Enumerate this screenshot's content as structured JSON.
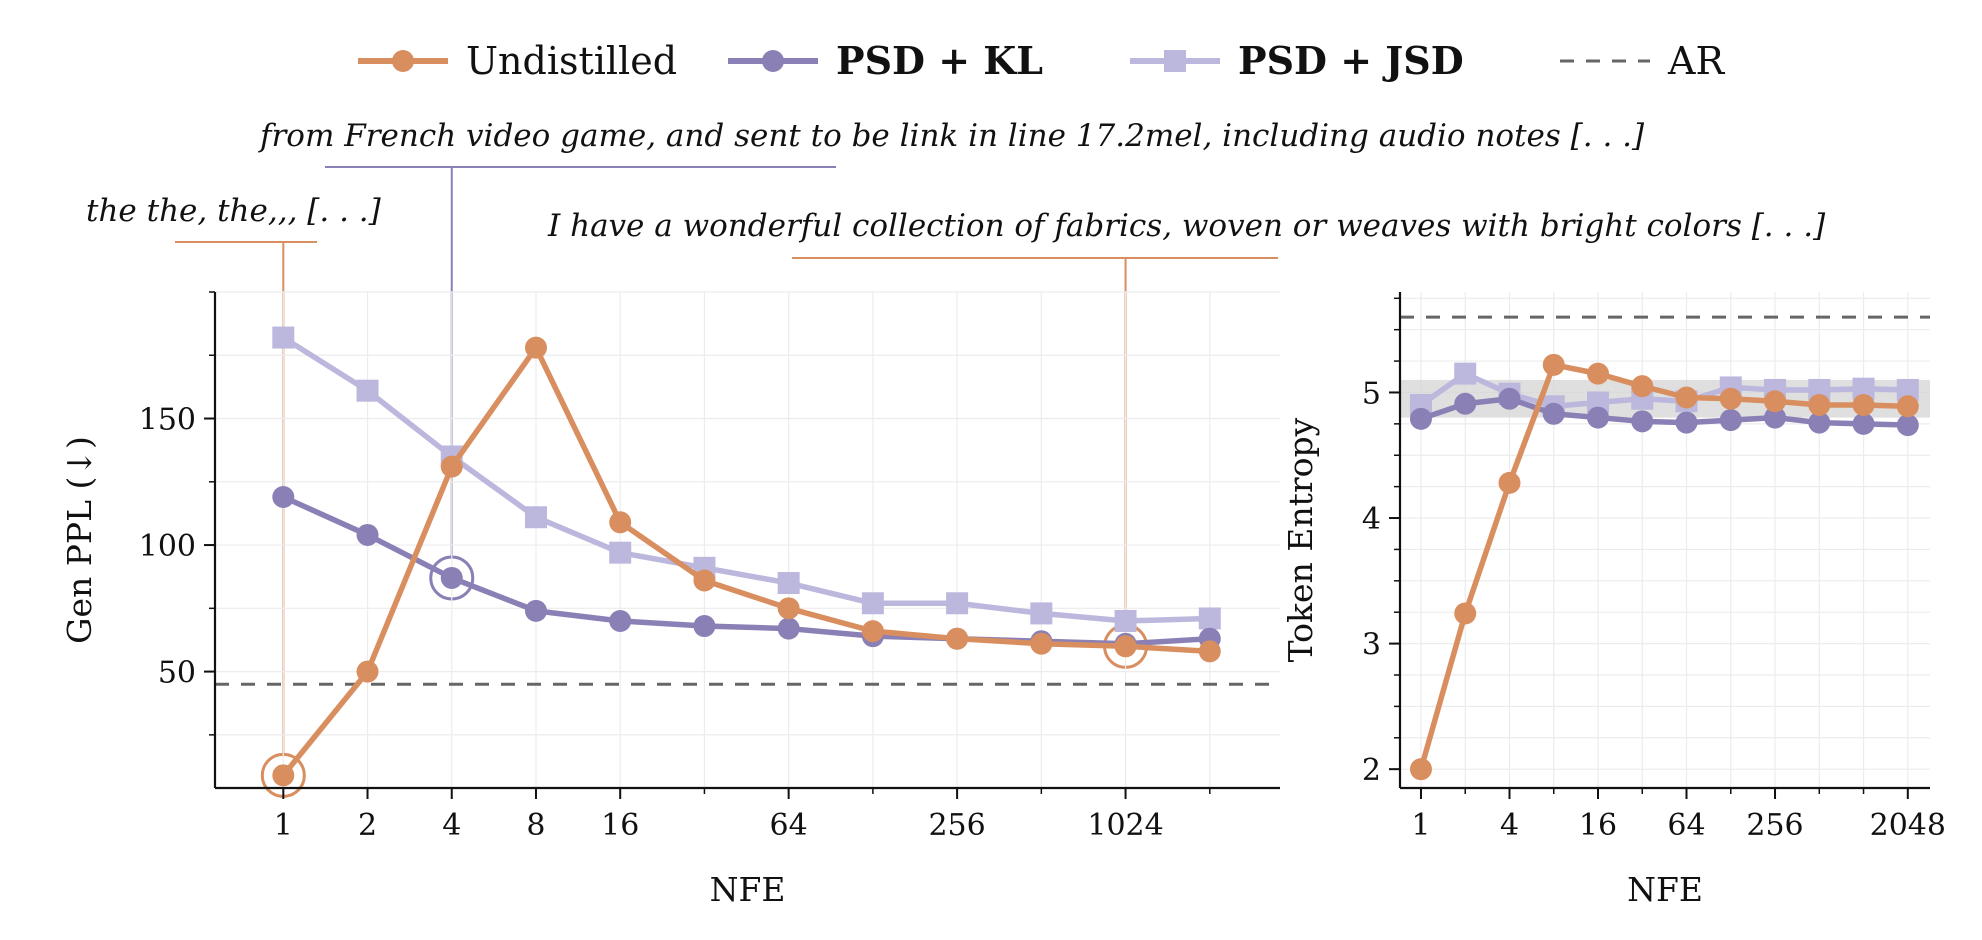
{
  "legend": [
    {
      "label": "Undistilled",
      "color": "#D98E5F",
      "marker": "circle",
      "style": "solid",
      "bold": false
    },
    {
      "label": "PSD + KL",
      "color": "#8A80B6",
      "marker": "circle",
      "style": "solid",
      "bold": true
    },
    {
      "label": "PSD + JSD",
      "color": "#BCB7DD",
      "marker": "square",
      "style": "solid",
      "bold": true
    },
    {
      "label": "AR",
      "color": "#666666",
      "marker": "none",
      "style": "dashed",
      "bold": false
    }
  ],
  "chart_data": [
    {
      "type": "line",
      "xlabel": "NFE",
      "ylabel": "Gen PPL (↓)",
      "x_scale": "log2",
      "x_ticks": [
        "1",
        "2",
        "4",
        "8",
        "16",
        "64",
        "256",
        "1024"
      ],
      "y_ticks": [
        "50",
        "100",
        "150"
      ],
      "xlim": [
        0.57,
        3650
      ],
      "ylim": [
        4,
        200
      ],
      "grid": true,
      "x": [
        1,
        2,
        4,
        8,
        16,
        32,
        64,
        128,
        256,
        512,
        1024,
        2048
      ],
      "series": [
        {
          "name": "Undistilled",
          "values": [
            9,
            50,
            131,
            178,
            109,
            86,
            75,
            66,
            63,
            61,
            60,
            58
          ]
        },
        {
          "name": "PSD + KL",
          "values": [
            119,
            104,
            87,
            74,
            70,
            68,
            67,
            64,
            63,
            62,
            61,
            63
          ]
        },
        {
          "name": "PSD + JSD",
          "values": [
            182,
            161,
            135,
            111,
            97,
            91,
            85,
            77,
            77,
            73,
            70,
            71
          ]
        }
      ],
      "reference_line": {
        "name": "AR",
        "value": 45
      },
      "annotations": [
        {
          "text": "the the, the,,, [. . .]",
          "series": "Undistilled",
          "x": 1,
          "y": 9,
          "color": "#D98E5F"
        },
        {
          "text": "from French video game, and sent to be link in line 17.2mel, including audio notes [. . .]",
          "series": "PSD + KL",
          "x": 4,
          "y": 87,
          "color": "#8A80B6"
        },
        {
          "text": "I have a wonderful collection of fabrics, woven or weaves with bright colors [. . .]",
          "series": "Undistilled",
          "x": 1024,
          "y": 60,
          "color": "#D98E5F"
        }
      ]
    },
    {
      "type": "line",
      "xlabel": "NFE",
      "ylabel": "Token Entropy",
      "x_scale": "log2",
      "x_ticks": [
        "1",
        "4",
        "16",
        "64",
        "256",
        "2048"
      ],
      "y_ticks": [
        "2",
        "3",
        "4",
        "5"
      ],
      "xlim": [
        0.72,
        2900
      ],
      "ylim": [
        1.85,
        5.8
      ],
      "grid": true,
      "x": [
        1,
        2,
        4,
        8,
        16,
        32,
        64,
        128,
        256,
        512,
        1024,
        2048
      ],
      "series": [
        {
          "name": "Undistilled",
          "values": [
            2.0,
            3.24,
            4.28,
            5.22,
            5.15,
            5.05,
            4.96,
            4.95,
            4.93,
            4.9,
            4.9,
            4.89
          ]
        },
        {
          "name": "PSD + KL",
          "values": [
            4.79,
            4.91,
            4.95,
            4.83,
            4.8,
            4.77,
            4.76,
            4.78,
            4.8,
            4.76,
            4.75,
            4.74
          ]
        },
        {
          "name": "PSD + JSD",
          "values": [
            4.9,
            5.15,
            4.99,
            4.89,
            4.92,
            4.95,
            4.93,
            5.04,
            5.02,
            5.02,
            5.03,
            5.02
          ]
        }
      ],
      "reference_line": {
        "name": "AR",
        "value": 5.6
      },
      "reference_band": [
        4.8,
        5.1
      ]
    }
  ]
}
